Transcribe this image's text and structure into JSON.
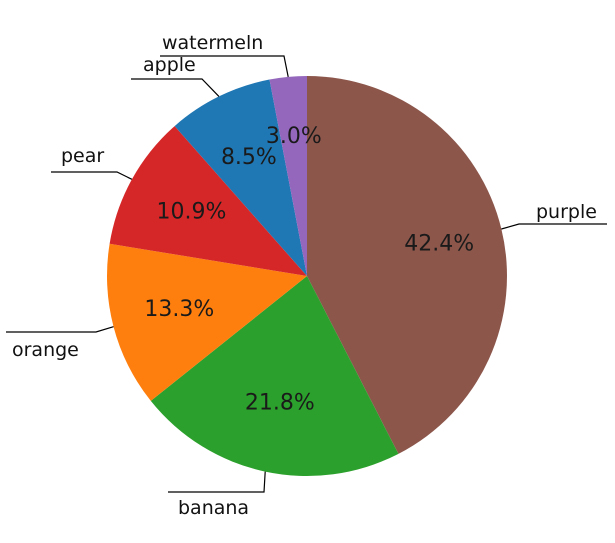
{
  "chart_data": {
    "type": "pie",
    "title": "",
    "categories": [
      "purple",
      "banana",
      "orange",
      "pear",
      "apple",
      "watermeln"
    ],
    "values": [
      42.4,
      21.8,
      13.3,
      10.9,
      8.5,
      3.0
    ],
    "value_labels": [
      "42.4%",
      "21.8%",
      "13.3%",
      "10.9%",
      "8.5%",
      "3.0%"
    ],
    "colors": [
      "#8c564b",
      "#2ca02c",
      "#ff7f0e",
      "#d62728",
      "#1f77b4",
      "#9467bd"
    ],
    "start_angle": "top (12 o'clock)",
    "direction": "clockwise",
    "legend": "none; category names attached to slices with leader lines"
  }
}
